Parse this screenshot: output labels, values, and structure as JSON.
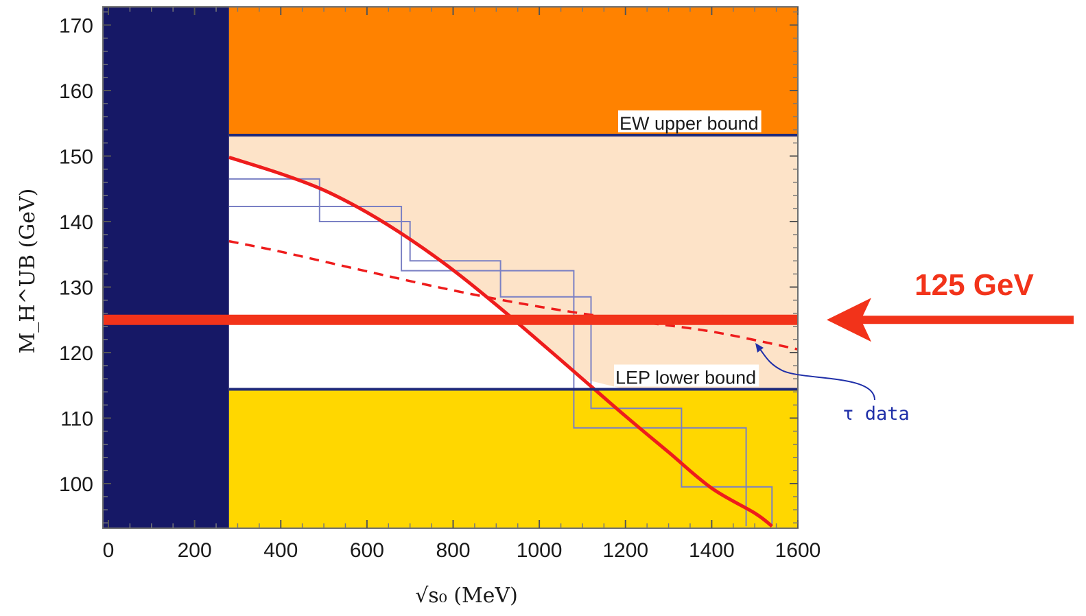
{
  "chart_data": {
    "type": "line",
    "xlabel": "√s₀  (MeV)",
    "ylabel": "M_H^UB  (GeV)",
    "xlim": [
      0,
      1600
    ],
    "ylim": [
      93.5,
      173
    ],
    "x_ticks": [
      0,
      200,
      400,
      600,
      800,
      1000,
      1200,
      1400,
      1600
    ],
    "y_ticks": [
      100,
      110,
      120,
      130,
      140,
      150,
      160,
      170
    ],
    "grid": false,
    "regions": [
      {
        "name": "excluded-low-s0",
        "x": [
          0,
          280
        ],
        "y": [
          93.5,
          173
        ],
        "color": "#161866"
      },
      {
        "name": "ew-excluded",
        "x": [
          280,
          1600
        ],
        "y": [
          153.2,
          173
        ],
        "color": "#ff8200"
      },
      {
        "name": "allowed-band",
        "x": [
          280,
          1600
        ],
        "y": [
          114.4,
          153.2
        ],
        "color": "#fde3c8"
      },
      {
        "name": "lep-excluded",
        "x": [
          280,
          1600
        ],
        "y": [
          93.5,
          114.4
        ],
        "color": "#ffd700"
      }
    ],
    "hlines": [
      {
        "label": "EW upper bound",
        "y": 153.2,
        "color": "#1f2a7a"
      },
      {
        "label": "LEP lower bound",
        "y": 114.4,
        "color": "#1f2a7a"
      }
    ],
    "series": [
      {
        "style": "solid",
        "color": "#ee1c1c",
        "x": [
          280,
          400,
          500,
          600,
          700,
          800,
          900,
          1000,
          1100,
          1200,
          1300,
          1400,
          1500,
          1540
        ],
        "y": [
          149.8,
          147.3,
          144.8,
          141.4,
          137.3,
          132.6,
          127.3,
          121.7,
          116.0,
          110.3,
          104.8,
          99.3,
          95.5,
          93.5
        ]
      },
      {
        "style": "dashed",
        "color": "#ee1c1c",
        "x": [
          280,
          400,
          600,
          800,
          1000,
          1200,
          1400,
          1600
        ],
        "y": [
          137.0,
          135.4,
          132.4,
          129.5,
          127.0,
          125.0,
          123.2,
          120.5
        ]
      }
    ],
    "step_bounds": [
      {
        "name": "upper",
        "x": [
          280,
          490,
          490,
          700,
          700,
          910,
          910,
          1120,
          1120,
          1330,
          1330,
          1540,
          1540
        ],
        "y": [
          146.5,
          146.5,
          140,
          140,
          134,
          134,
          128.5,
          128.5,
          111.5,
          111.5,
          99.5,
          99.5,
          93.5
        ]
      },
      {
        "name": "lower",
        "x": [
          280,
          680,
          680,
          1080,
          1080,
          1480,
          1480
        ],
        "y": [
          142.3,
          142.3,
          132.5,
          132.5,
          108.5,
          108.5,
          93.5
        ]
      }
    ],
    "highlight": {
      "label": "125 GeV",
      "y": 125,
      "color": "#f2331a"
    },
    "annotation": {
      "label": "τ data"
    }
  }
}
